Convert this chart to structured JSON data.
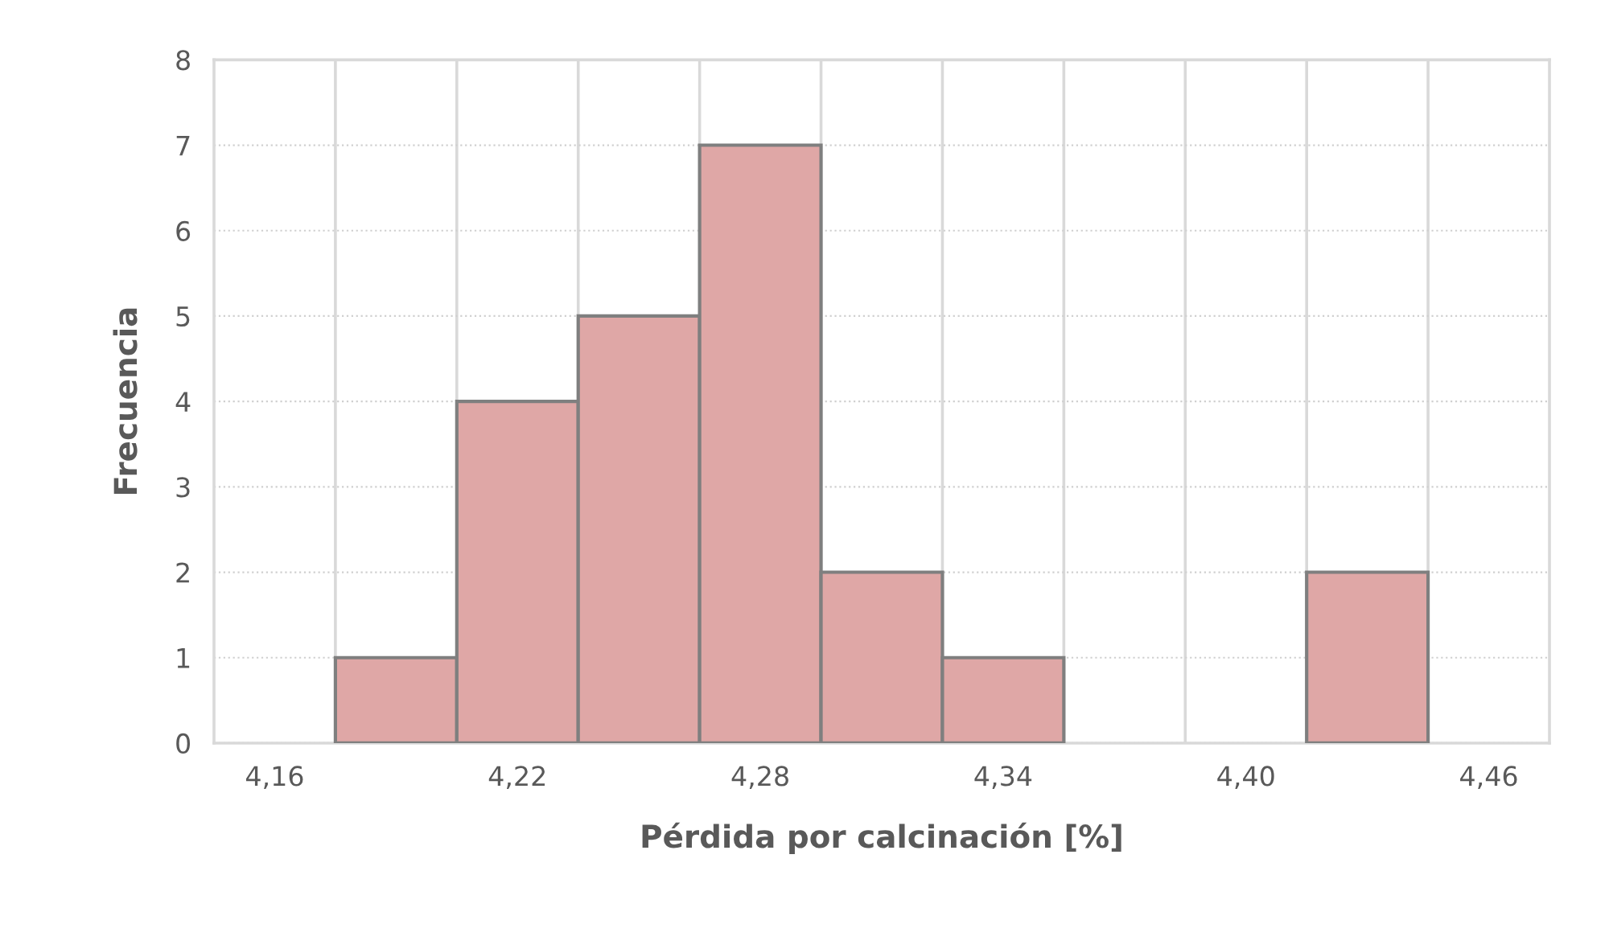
{
  "chart_data": {
    "type": "histogram",
    "xlabel": "Pérdida por calcinación [%]",
    "ylabel": "Frecuencia",
    "bins": [
      4.175,
      4.205,
      4.235,
      4.265,
      4.295,
      4.325,
      4.355,
      4.385,
      4.415,
      4.445
    ],
    "values": [
      1,
      4,
      5,
      7,
      2,
      1,
      0,
      0,
      2
    ],
    "color": "#dfa7a6",
    "xlim": [
      4.145,
      4.475
    ],
    "xticks": [
      {
        "value": 4.16,
        "label": "4,16"
      },
      {
        "value": 4.22,
        "label": "4,22"
      },
      {
        "value": 4.28,
        "label": "4,28"
      },
      {
        "value": 4.34,
        "label": "4,34"
      },
      {
        "value": 4.4,
        "label": "4,40"
      },
      {
        "value": 4.46,
        "label": "4,46"
      },
      {
        "value": 4.175,
        "label": null
      },
      {
        "value": 4.205,
        "label": null
      },
      {
        "value": 4.235,
        "label": null
      },
      {
        "value": 4.265,
        "label": null
      },
      {
        "value": 4.295,
        "label": null
      },
      {
        "value": 4.325,
        "label": null
      },
      {
        "value": 4.355,
        "label": null
      },
      {
        "value": 4.385,
        "label": null
      },
      {
        "value": 4.415,
        "label": null
      },
      {
        "value": 4.445,
        "label": null
      }
    ],
    "ylim": [
      0,
      8
    ],
    "yticks": [
      0,
      1,
      2,
      3,
      4,
      5,
      6,
      7,
      8
    ],
    "grid": true
  }
}
